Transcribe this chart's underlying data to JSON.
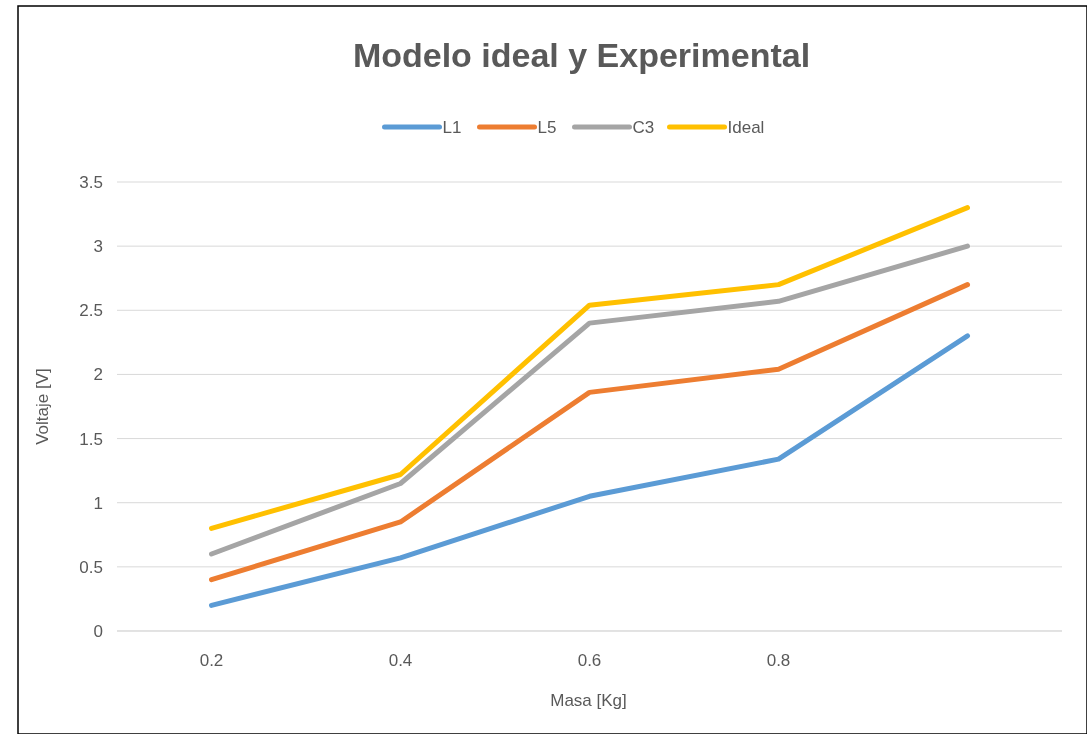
{
  "chart_data": {
    "type": "line",
    "title": "Modelo ideal y Experimental",
    "xlabel": "Masa [Kg]",
    "ylabel": "Voltaje [V]",
    "categories": [
      "0.2",
      "0.4",
      "0.6",
      "0.8",
      null
    ],
    "series": [
      {
        "name": "L1",
        "color": "#5b9bd5",
        "values": [
          0.2,
          0.57,
          1.05,
          1.34,
          2.3
        ]
      },
      {
        "name": "L5",
        "color": "#ed7d31",
        "values": [
          0.4,
          0.85,
          1.86,
          2.04,
          2.7
        ]
      },
      {
        "name": "C3",
        "color": "#a5a5a5",
        "values": [
          0.6,
          1.15,
          2.4,
          2.57,
          3.0
        ]
      },
      {
        "name": "Ideal",
        "color": "#ffc000",
        "values": [
          0.8,
          1.22,
          2.54,
          2.7,
          3.3
        ]
      }
    ],
    "ylim": [
      0,
      3.5
    ],
    "yticks": [
      0,
      0.5,
      1,
      1.5,
      2,
      2.5,
      3,
      3.5
    ],
    "grid": "y",
    "legend": "top",
    "marker": "none",
    "line_style": "solid"
  }
}
